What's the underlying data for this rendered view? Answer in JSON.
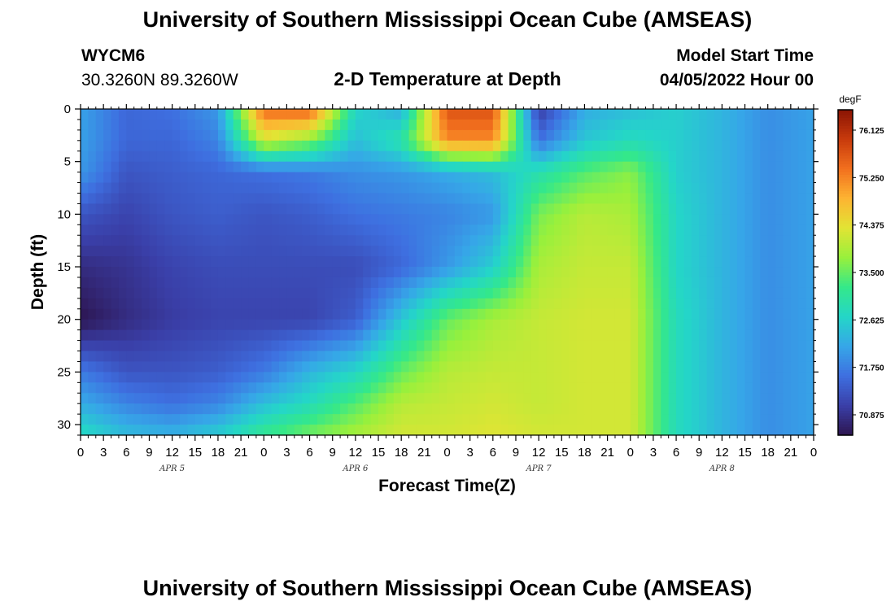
{
  "header": {
    "title": "University of Southern Mississippi Ocean Cube (AMSEAS)",
    "station": "WYCM6",
    "location": "30.3260N  89.3260W",
    "model_start_label": "Model Start Time",
    "model_start_value": "04/05/2022 Hour 00"
  },
  "footer": {
    "title": "University of Southern Mississippi Ocean Cube (AMSEAS)"
  },
  "chart_data": {
    "type": "heatmap",
    "title": "2-D Temperature at Depth",
    "xlabel": "Forecast Time(Z)",
    "ylabel": "Depth (ft)",
    "x_ticks": [
      "0",
      "3",
      "6",
      "9",
      "12",
      "15",
      "18",
      "21",
      "0",
      "3",
      "6",
      "9",
      "12",
      "15",
      "18",
      "21",
      "0",
      "3",
      "6",
      "9",
      "12",
      "15",
      "18",
      "21",
      "0",
      "3",
      "6",
      "9",
      "12",
      "15",
      "18",
      "21",
      "0"
    ],
    "date_labels": [
      {
        "label": "APR 5",
        "hour": 12
      },
      {
        "label": "APR 6",
        "hour": 36
      },
      {
        "label": "APR 7",
        "hour": 60
      },
      {
        "label": "APR 8",
        "hour": 84
      }
    ],
    "xlim_hours": [
      0,
      96
    ],
    "y_ticks": [
      0,
      5,
      10,
      15,
      20,
      25,
      30
    ],
    "ylim": [
      0,
      31
    ],
    "y_inverted": true,
    "colorbar": {
      "unit": "degF",
      "ticks": [
        76.125,
        75.25,
        74.375,
        73.5,
        72.625,
        71.75,
        70.875
      ],
      "tick_labels": [
        "76.125",
        "75.250",
        "74.375",
        "73.500",
        "72.625",
        "71.750",
        "70.875"
      ],
      "range": [
        70.5,
        76.5
      ],
      "colormap": [
        "#2d1550",
        "#3a3fa8",
        "#3e6fe0",
        "#36a6e8",
        "#24d6c8",
        "#34e88a",
        "#98f03c",
        "#e2e434",
        "#fdb432",
        "#f2701e",
        "#c83a0c",
        "#8a1404"
      ]
    },
    "hours": [
      0,
      6,
      12,
      18,
      24,
      30,
      36,
      42,
      48,
      54,
      60,
      66,
      72,
      78,
      84,
      90,
      96
    ],
    "depths": [
      0,
      3,
      6,
      10,
      15,
      20,
      25,
      28,
      31
    ],
    "values": [
      [
        72.1,
        71.5,
        71.6,
        72.0,
        75.5,
        75.6,
        72.7,
        72.2,
        75.7,
        75.7,
        71.0,
        72.2,
        72.4,
        72.6,
        72.3,
        71.9,
        72.1
      ],
      [
        72.1,
        71.5,
        71.5,
        71.8,
        74.2,
        73.7,
        72.4,
        73.0,
        75.2,
        75.2,
        71.6,
        72.5,
        72.8,
        72.6,
        72.3,
        71.9,
        72.1
      ],
      [
        72.0,
        71.3,
        71.4,
        71.5,
        71.6,
        71.7,
        71.9,
        72.0,
        72.2,
        72.4,
        72.9,
        73.4,
        73.7,
        72.6,
        72.3,
        71.9,
        72.1
      ],
      [
        71.3,
        71.1,
        71.3,
        71.4,
        71.3,
        71.4,
        71.6,
        71.7,
        71.8,
        72.0,
        73.6,
        74.0,
        73.9,
        72.7,
        72.3,
        71.9,
        72.1
      ],
      [
        70.8,
        70.9,
        71.1,
        71.2,
        71.2,
        71.2,
        71.2,
        71.5,
        72.0,
        72.6,
        73.9,
        74.1,
        74.1,
        72.7,
        72.3,
        71.9,
        72.1
      ],
      [
        70.5,
        70.8,
        71.0,
        71.1,
        71.1,
        71.1,
        71.4,
        72.5,
        73.5,
        73.9,
        74.1,
        74.2,
        74.2,
        72.8,
        72.3,
        71.9,
        72.1
      ],
      [
        71.7,
        71.3,
        71.3,
        71.4,
        71.7,
        72.3,
        72.7,
        73.5,
        74.0,
        74.1,
        74.1,
        74.2,
        74.2,
        72.8,
        72.3,
        71.9,
        72.1
      ],
      [
        72.2,
        71.8,
        71.6,
        71.8,
        72.4,
        72.8,
        73.4,
        74.0,
        74.1,
        74.2,
        74.1,
        74.2,
        74.2,
        72.8,
        72.3,
        71.9,
        72.1
      ],
      [
        72.8,
        72.4,
        72.3,
        72.6,
        73.2,
        73.6,
        73.9,
        74.2,
        74.2,
        74.3,
        74.2,
        74.2,
        74.2,
        72.8,
        72.3,
        71.9,
        72.1
      ]
    ]
  }
}
